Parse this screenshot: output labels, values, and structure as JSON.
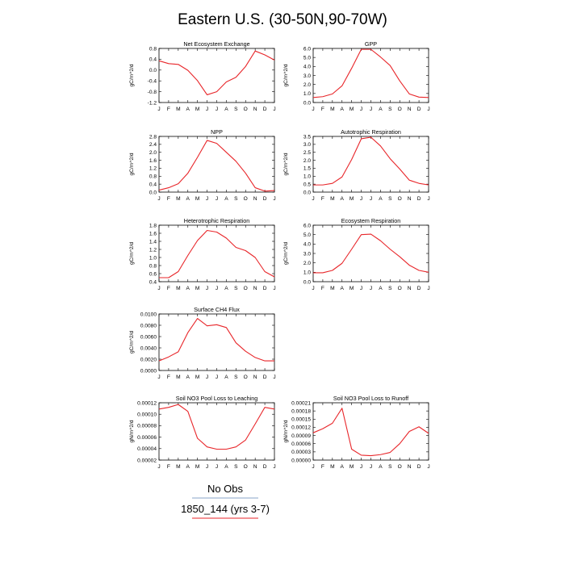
{
  "figure": {
    "title": "Eastern U.S. (30-50N,90-70W)",
    "line_color": "#e8262a",
    "legend": [
      {
        "label": "No Obs",
        "color": "#8aa6c8"
      },
      {
        "label": "1850_144 (yrs 3-7)",
        "color": "#e8262a"
      }
    ]
  },
  "chart_data": [
    {
      "type": "line",
      "title": "Net Ecosystem Exchange",
      "ylabel": "gC/m^2/d",
      "categories": [
        "J",
        "F",
        "M",
        "A",
        "M",
        "J",
        "J",
        "A",
        "S",
        "O",
        "N",
        "D",
        "J"
      ],
      "yticks": [
        "0.8",
        "0.4",
        "0.0",
        "-0.4",
        "-0.8",
        "-1.2"
      ],
      "ylim": [
        -1.2,
        0.9
      ],
      "series": [
        {
          "values": [
            0.42,
            0.31,
            0.28,
            0.05,
            -0.35,
            -0.9,
            -0.78,
            -0.4,
            -0.22,
            0.2,
            0.8,
            0.65,
            0.45
          ]
        }
      ]
    },
    {
      "type": "line",
      "title": "GPP",
      "ylabel": "gC/m^2/d",
      "categories": [
        "J",
        "F",
        "M",
        "A",
        "M",
        "J",
        "J",
        "A",
        "S",
        "O",
        "N",
        "D",
        "J"
      ],
      "yticks": [
        "6.0",
        "5.0",
        "4.0",
        "3.0",
        "2.0",
        "1.0",
        "0.0"
      ],
      "ylim": [
        0,
        6.0
      ],
      "series": [
        {
          "values": [
            0.55,
            0.65,
            0.95,
            1.85,
            3.8,
            5.9,
            5.9,
            5.05,
            4.1,
            2.4,
            0.95,
            0.6,
            0.55
          ]
        }
      ]
    },
    {
      "type": "line",
      "title": "NPP",
      "ylabel": "gC/m^2/d",
      "categories": [
        "J",
        "F",
        "M",
        "A",
        "M",
        "J",
        "J",
        "A",
        "S",
        "O",
        "N",
        "D",
        "J"
      ],
      "yticks": [
        "2.8",
        "2.4",
        "2.0",
        "1.6",
        "1.2",
        "0.8",
        "0.4",
        "0.0"
      ],
      "ylim": [
        0,
        2.8
      ],
      "series": [
        {
          "values": [
            0.1,
            0.22,
            0.42,
            0.95,
            1.75,
            2.6,
            2.45,
            2.0,
            1.55,
            0.95,
            0.22,
            0.05,
            0.08
          ]
        }
      ]
    },
    {
      "type": "line",
      "title": "Autotrophic Respiration",
      "ylabel": "gC/m^2/d",
      "categories": [
        "J",
        "F",
        "M",
        "A",
        "M",
        "J",
        "J",
        "A",
        "S",
        "O",
        "N",
        "D",
        "J"
      ],
      "yticks": [
        "3.5",
        "3.0",
        "2.5",
        "2.0",
        "1.5",
        "1.0",
        "0.5",
        "0.0"
      ],
      "ylim": [
        0,
        3.5
      ],
      "series": [
        {
          "values": [
            0.45,
            0.45,
            0.55,
            0.95,
            2.05,
            3.35,
            3.45,
            2.9,
            2.1,
            1.45,
            0.75,
            0.55,
            0.45
          ]
        }
      ]
    },
    {
      "type": "line",
      "title": "Heterotrophic Respiration",
      "ylabel": "gC/m^2/d",
      "categories": [
        "J",
        "F",
        "M",
        "A",
        "M",
        "J",
        "J",
        "A",
        "S",
        "O",
        "N",
        "D",
        "J"
      ],
      "yticks": [
        "1.8",
        "1.6",
        "1.4",
        "1.2",
        "1.0",
        "0.8",
        "0.6",
        "0.4"
      ],
      "ylim": [
        0.4,
        1.8
      ],
      "series": [
        {
          "values": [
            0.5,
            0.5,
            0.65,
            1.05,
            1.42,
            1.67,
            1.63,
            1.48,
            1.25,
            1.17,
            1.0,
            0.65,
            0.52
          ]
        }
      ]
    },
    {
      "type": "line",
      "title": "Ecosystem Respiration",
      "ylabel": "gC/m^2/d",
      "categories": [
        "J",
        "F",
        "M",
        "A",
        "M",
        "J",
        "J",
        "A",
        "S",
        "O",
        "N",
        "D",
        "J"
      ],
      "yticks": [
        "6.0",
        "5.0",
        "4.0",
        "3.0",
        "2.0",
        "1.0",
        "0.0"
      ],
      "ylim": [
        0,
        6.0
      ],
      "series": [
        {
          "values": [
            0.95,
            0.95,
            1.2,
            1.95,
            3.45,
            5.0,
            5.05,
            4.35,
            3.45,
            2.65,
            1.75,
            1.2,
            1.0
          ]
        }
      ]
    },
    {
      "type": "line",
      "title": "Surface CH4 Flux",
      "ylabel": "gC/m^2/d",
      "categories": [
        "J",
        "F",
        "M",
        "A",
        "M",
        "J",
        "J",
        "A",
        "S",
        "O",
        "N",
        "D",
        "J"
      ],
      "yticks": [
        "0.0100",
        "0.0080",
        "0.0060",
        "0.0040",
        "0.0020",
        "0.0000"
      ],
      "ylim": [
        0,
        0.01
      ],
      "series": [
        {
          "values": [
            0.0017,
            0.0024,
            0.0033,
            0.0067,
            0.0092,
            0.0079,
            0.0081,
            0.0076,
            0.0049,
            0.0034,
            0.0023,
            0.0017,
            0.0017
          ]
        }
      ]
    },
    {
      "type": "line",
      "title": "Soil NO3 Pool Loss to Leaching",
      "ylabel": "gN/m^2/d",
      "categories": [
        "J",
        "F",
        "M",
        "A",
        "M",
        "J",
        "J",
        "A",
        "S",
        "O",
        "N",
        "D",
        "J"
      ],
      "yticks": [
        "0.00012",
        "0.00010",
        "0.00008",
        "0.00006",
        "0.00004",
        "0.00002"
      ],
      "ylim": [
        2e-05,
        0.00012
      ],
      "series": [
        {
          "values": [
            0.000109,
            0.000112,
            0.000117,
            0.000105,
            5.8e-05,
            4.3e-05,
            3.9e-05,
            3.9e-05,
            4.3e-05,
            5.5e-05,
            8.3e-05,
            0.000112,
            0.000109
          ]
        }
      ]
    },
    {
      "type": "line",
      "title": "Soil NO3 Pool Loss to Runoff",
      "ylabel": "gN/m^2/d",
      "categories": [
        "J",
        "F",
        "M",
        "A",
        "M",
        "J",
        "J",
        "A",
        "S",
        "O",
        "N",
        "D",
        "J"
      ],
      "yticks": [
        "0.00021",
        "0.00018",
        "0.00015",
        "0.00012",
        "0.00009",
        "0.00006",
        "0.00003",
        "0.00000"
      ],
      "ylim": [
        0,
        0.00021
      ],
      "series": [
        {
          "values": [
            0.0001,
            0.000115,
            0.000135,
            0.00019,
            4e-05,
            1.8e-05,
            1.6e-05,
            2e-05,
            2.8e-05,
            6e-05,
            0.000105,
            0.000122,
            9.8e-05
          ]
        }
      ]
    }
  ]
}
